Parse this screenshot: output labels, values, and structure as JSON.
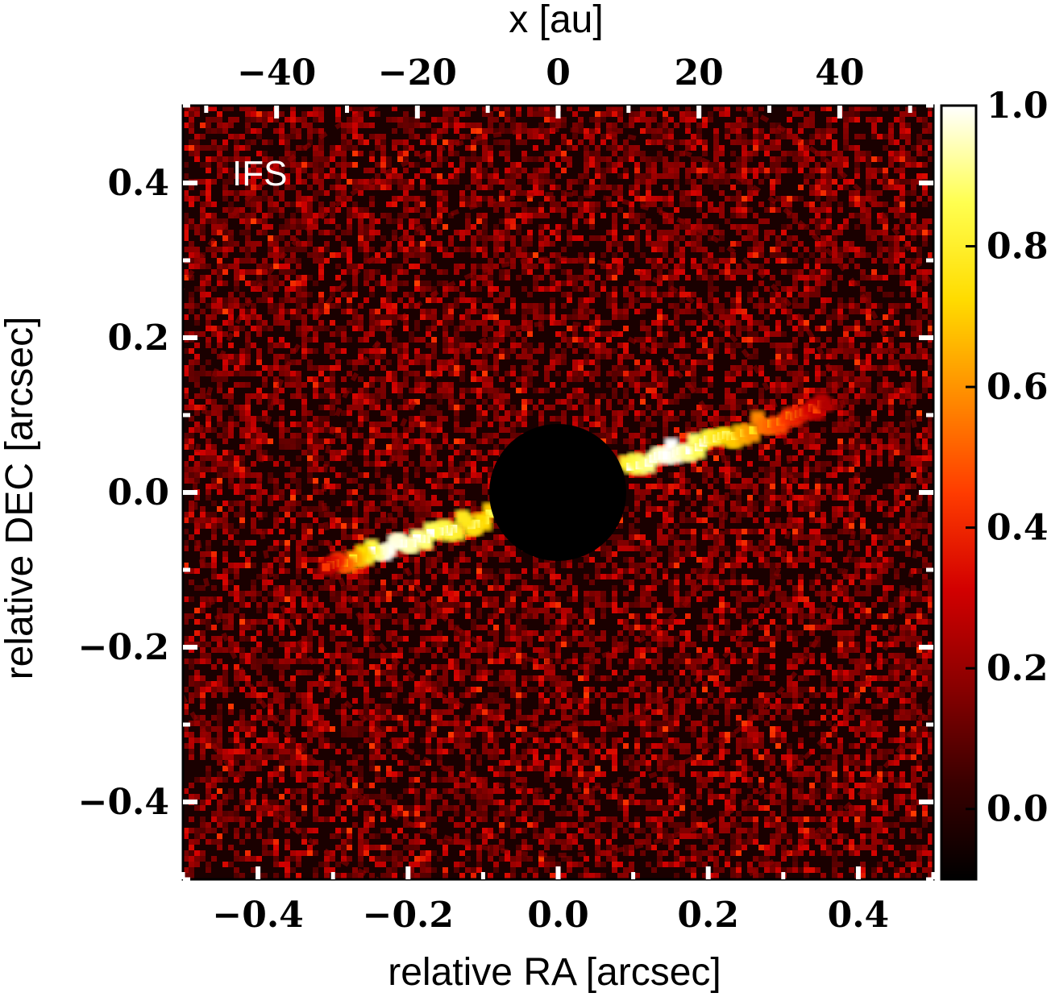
{
  "chart_data": {
    "type": "heatmap",
    "panel_label": "IFS",
    "xlabel": "relative RA [arcsec]",
    "ylabel": "relative DEC [arcsec]",
    "top_xlabel": "x [au]",
    "xlim": [
      -0.5,
      0.5
    ],
    "ylim": [
      -0.5,
      0.5
    ],
    "top_xlim": [
      -53.3,
      53.3
    ],
    "x_ticks": [
      {
        "value": -0.4,
        "label": "−0.4"
      },
      {
        "value": -0.2,
        "label": "−0.2"
      },
      {
        "value": 0.0,
        "label": "0.0"
      },
      {
        "value": 0.2,
        "label": "0.2"
      },
      {
        "value": 0.4,
        "label": "0.4"
      }
    ],
    "y_ticks": [
      {
        "value": 0.4,
        "label": "0.4"
      },
      {
        "value": 0.2,
        "label": "0.2"
      },
      {
        "value": 0.0,
        "label": "0.0"
      },
      {
        "value": -0.2,
        "label": "−0.2"
      },
      {
        "value": -0.4,
        "label": "−0.4"
      }
    ],
    "top_ticks": [
      {
        "value": -40,
        "label": "−40"
      },
      {
        "value": -20,
        "label": "−20"
      },
      {
        "value": 0,
        "label": "0"
      },
      {
        "value": 20,
        "label": "20"
      },
      {
        "value": 40,
        "label": "40"
      }
    ],
    "colorbar": {
      "range": [
        -0.1,
        1.0
      ],
      "ticks": [
        {
          "value": 0.0,
          "label": "0.0"
        },
        {
          "value": 0.2,
          "label": "0.2"
        },
        {
          "value": 0.4,
          "label": "0.4"
        },
        {
          "value": 0.6,
          "label": "0.6"
        },
        {
          "value": 0.8,
          "label": "0.8"
        },
        {
          "value": 1.0,
          "label": "1.0"
        }
      ],
      "colormap": "heat",
      "stops": [
        "#000000",
        "#3a0000",
        "#8a0000",
        "#d20000",
        "#ff3c00",
        "#ff8c00",
        "#ffdc00",
        "#ffff50",
        "#ffffff"
      ]
    },
    "mask_radius_arcsec": 0.09,
    "disk": {
      "shape": "edge-on disk",
      "position_angle_deg": 70,
      "peak_value": 1.0,
      "background_value": 0.1
    }
  }
}
